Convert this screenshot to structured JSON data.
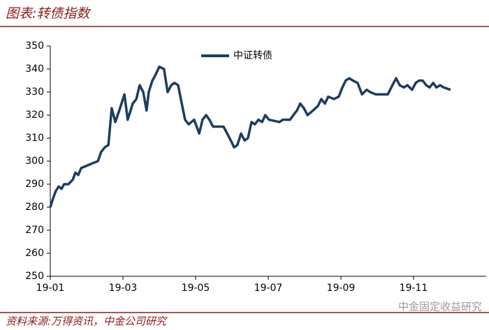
{
  "header": {
    "title": "图表:转债指数"
  },
  "chart_data": {
    "type": "line",
    "x": [
      0,
      0.08,
      0.15,
      0.23,
      0.31,
      0.38,
      0.5,
      0.62,
      0.69,
      0.77,
      0.85,
      1.0,
      1.15,
      1.31,
      1.4,
      1.5,
      1.6,
      1.69,
      1.79,
      1.92,
      2.04,
      2.13,
      2.27,
      2.37,
      2.46,
      2.56,
      2.65,
      2.71,
      2.81,
      2.88,
      3.0,
      3.13,
      3.23,
      3.33,
      3.42,
      3.52,
      3.62,
      3.71,
      3.81,
      3.96,
      4.1,
      4.19,
      4.29,
      4.38,
      4.48,
      4.77,
      4.87,
      5.0,
      5.06,
      5.15,
      5.25,
      5.35,
      5.44,
      5.54,
      5.63,
      5.73,
      5.83,
      5.92,
      6.02,
      6.31,
      6.4,
      6.6,
      6.69,
      6.79,
      6.88,
      6.98,
      7.08,
      7.23,
      7.37,
      7.46,
      7.56,
      7.65,
      7.81,
      7.94,
      8.04,
      8.13,
      8.23,
      8.33,
      8.46,
      8.58,
      8.71,
      8.81,
      8.96,
      9.29,
      9.42,
      9.52,
      9.62,
      9.73,
      9.83,
      9.96,
      10.06,
      10.15,
      10.25,
      10.35,
      10.44,
      10.54,
      10.63,
      10.73,
      10.83,
      11.02
    ],
    "series": [
      {
        "name": "中证转债",
        "color": "#1c3d63",
        "values": [
          280,
          284,
          287,
          289,
          288,
          290,
          290,
          292,
          295,
          294,
          297,
          298,
          299,
          300,
          304,
          306,
          307,
          323,
          317,
          323,
          329,
          318,
          325,
          327,
          333,
          330,
          322,
          330,
          335,
          337,
          341,
          340,
          330,
          333,
          334,
          333,
          325,
          318,
          316,
          318,
          312,
          318,
          320,
          318,
          315,
          315,
          312,
          308,
          306,
          307,
          312,
          309,
          310,
          317,
          316,
          318,
          317,
          320,
          318,
          317,
          318,
          318,
          320,
          322,
          325,
          323,
          320,
          322,
          324,
          327,
          325,
          328,
          327,
          328,
          332,
          335,
          336,
          335,
          334,
          329,
          331,
          330,
          329,
          329,
          333,
          336,
          333,
          332,
          333,
          331,
          334,
          335,
          335,
          333,
          332,
          334,
          332,
          333,
          332,
          331
        ]
      }
    ],
    "xlim": [
      0,
      12
    ],
    "xticks": [
      {
        "value": 0,
        "label": "19-01"
      },
      {
        "value": 2,
        "label": "19-03"
      },
      {
        "value": 4,
        "label": "19-05"
      },
      {
        "value": 6,
        "label": "19-07"
      },
      {
        "value": 8,
        "label": "19-09"
      },
      {
        "value": 10,
        "label": "19-11"
      }
    ],
    "ylim": [
      250,
      350
    ],
    "yticks": [
      250,
      260,
      270,
      280,
      290,
      300,
      310,
      320,
      330,
      340,
      350
    ],
    "grid": false,
    "legend": "top"
  },
  "footer": {
    "source": "资料来源:万得资讯，中金公司研究",
    "watermark": "中金固定收益研究"
  }
}
